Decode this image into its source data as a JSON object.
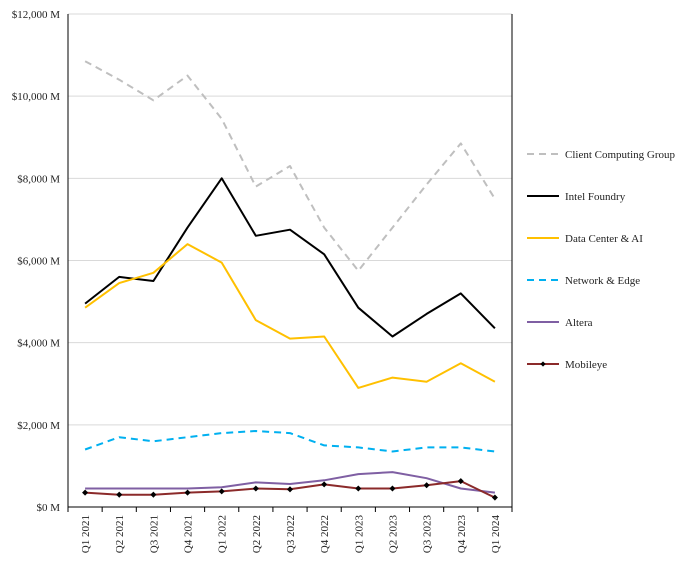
{
  "chart_data": {
    "type": "line",
    "title": "",
    "xlabel": "",
    "ylabel": "",
    "categories": [
      "Q1 2021",
      "Q2 2021",
      "Q3 2021",
      "Q4 2021",
      "Q1 2022",
      "Q2 2022",
      "Q3 2022",
      "Q4 2022",
      "Q1 2023",
      "Q2 2023",
      "Q3 2023",
      "Q4 2023",
      "Q1 2024"
    ],
    "ylim": [
      0,
      12000
    ],
    "yticks": [
      0,
      2000,
      4000,
      6000,
      8000,
      10000,
      12000
    ],
    "ytick_labels": [
      "$0 M",
      "$2,000 M",
      "$4,000 M",
      "$6,000 M",
      "$8,000 M",
      "$10,000 M",
      "$12,000 M"
    ],
    "grid": "horizontal",
    "legend_position": "right",
    "series": [
      {
        "name": "Client Computing Group",
        "color": "#bfbfbf",
        "dash": "dashed",
        "marker": "none",
        "values": [
          10850,
          10400,
          9900,
          10500,
          9450,
          7800,
          8300,
          6800,
          5750,
          6800,
          7850,
          8850,
          7500
        ]
      },
      {
        "name": "Intel Foundry",
        "color": "#000000",
        "dash": "solid",
        "marker": "none",
        "values": [
          4950,
          5600,
          5500,
          6800,
          8000,
          6600,
          6750,
          6150,
          4850,
          4150,
          4700,
          5200,
          4350
        ]
      },
      {
        "name": "Data Center & AI",
        "color": "#ffc000",
        "dash": "solid",
        "marker": "none",
        "values": [
          4850,
          5450,
          5700,
          6400,
          5950,
          4550,
          4100,
          4150,
          2900,
          3150,
          3050,
          3500,
          3050
        ]
      },
      {
        "name": "Network & Edge",
        "color": "#00b0f0",
        "dash": "dashed",
        "marker": "none",
        "values": [
          1400,
          1700,
          1600,
          1700,
          1800,
          1850,
          1800,
          1500,
          1450,
          1350,
          1450,
          1450,
          1350
        ]
      },
      {
        "name": "Altera",
        "color": "#7f5fa3",
        "dash": "solid",
        "marker": "none",
        "values": [
          450,
          450,
          450,
          450,
          480,
          600,
          560,
          650,
          800,
          850,
          700,
          450,
          350
        ]
      },
      {
        "name": "Mobileye",
        "color": "#8b2a2a",
        "dash": "solid",
        "marker": "diamond",
        "values": [
          350,
          300,
          300,
          350,
          380,
          450,
          430,
          550,
          450,
          450,
          530,
          630,
          230
        ]
      }
    ]
  }
}
